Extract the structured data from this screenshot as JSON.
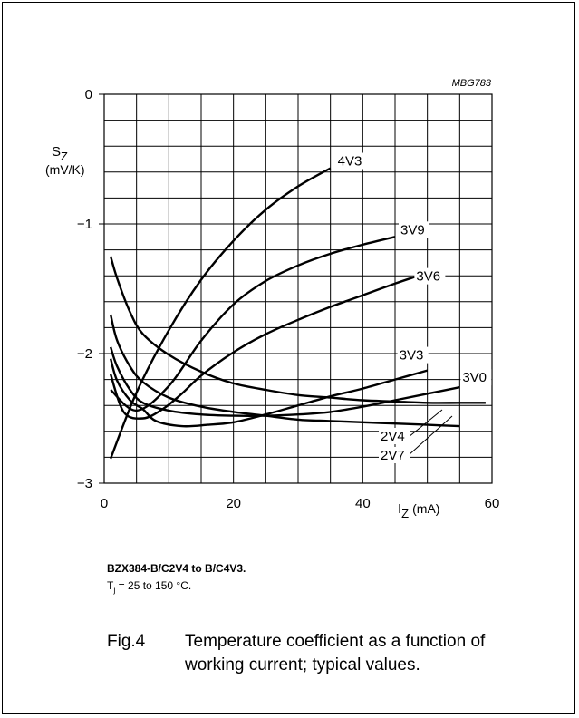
{
  "code": "MBG783",
  "caption": {
    "title": "BZX384-B/C2V4 to B/C4V3.",
    "condition_sym": "T",
    "condition_sub": "j",
    "condition_text": " = 25 to 150 °C."
  },
  "figure": {
    "number": "Fig.4",
    "text": "Temperature coefficient as a function of working current; typical values."
  },
  "chart_data": {
    "type": "line",
    "title": "",
    "xlabel": {
      "main": "I",
      "sub": "Z",
      "unit": "(mA)"
    },
    "ylabel": {
      "main": "S",
      "sub": "Z",
      "unit": "(mV/K)"
    },
    "xlim": [
      0,
      60
    ],
    "ylim": [
      -3,
      0
    ],
    "xticks": [
      0,
      20,
      40,
      60
    ],
    "xtick_labels": [
      "0",
      "20",
      "40",
      "60"
    ],
    "yticks": [
      0,
      -1,
      -2,
      -3
    ],
    "ytick_labels": [
      "0",
      "−1",
      "−2",
      "−3"
    ],
    "grid": true,
    "grid_x_step": 5,
    "grid_y_step": 0.2,
    "series": [
      {
        "name": "4V3",
        "x": [
          1,
          5,
          10,
          15,
          20,
          25,
          30,
          35
        ],
        "y": [
          -2.81,
          -2.3,
          -1.82,
          -1.43,
          -1.13,
          -0.89,
          -0.71,
          -0.57
        ]
      },
      {
        "name": "3V9",
        "x": [
          1,
          5,
          10,
          15,
          20,
          25,
          30,
          35,
          40,
          45
        ],
        "y": [
          -2.28,
          -2.44,
          -2.25,
          -1.9,
          -1.62,
          -1.44,
          -1.32,
          -1.23,
          -1.16,
          -1.1
        ]
      },
      {
        "name": "3V6",
        "x": [
          1,
          3,
          6,
          9,
          12,
          15,
          20,
          25,
          30,
          35,
          40,
          45,
          48
        ],
        "y": [
          -2.16,
          -2.45,
          -2.5,
          -2.43,
          -2.31,
          -2.17,
          -1.99,
          -1.85,
          -1.74,
          -1.64,
          -1.55,
          -1.46,
          -1.41
        ]
      },
      {
        "name": "3V3",
        "x": [
          1,
          2,
          4,
          6,
          8,
          12,
          16,
          20,
          25,
          30,
          35,
          40,
          45,
          50
        ],
        "y": [
          -2.04,
          -2.21,
          -2.36,
          -2.43,
          -2.52,
          -2.56,
          -2.55,
          -2.53,
          -2.47,
          -2.4,
          -2.33,
          -2.27,
          -2.2,
          -2.13
        ]
      },
      {
        "name": "3V0",
        "x": [
          1,
          2,
          4,
          6,
          10,
          15,
          20,
          25,
          30,
          35,
          40,
          45,
          50,
          55
        ],
        "y": [
          -1.95,
          -2.1,
          -2.28,
          -2.38,
          -2.44,
          -2.47,
          -2.48,
          -2.48,
          -2.47,
          -2.45,
          -2.41,
          -2.36,
          -2.31,
          -2.26
        ]
      },
      {
        "name": "2V4",
        "x": [
          1,
          2,
          4,
          6,
          10,
          15,
          20,
          25,
          30,
          35,
          40,
          45,
          50,
          55,
          59
        ],
        "y": [
          -1.25,
          -1.42,
          -1.68,
          -1.85,
          -2.01,
          -2.14,
          -2.23,
          -2.28,
          -2.32,
          -2.34,
          -2.36,
          -2.37,
          -2.38,
          -2.38,
          -2.38
        ]
      },
      {
        "name": "2V7",
        "x": [
          1,
          2,
          4,
          6,
          10,
          15,
          20,
          25,
          30,
          35,
          40,
          45,
          50,
          55
        ],
        "y": [
          -1.7,
          -1.9,
          -2.1,
          -2.22,
          -2.34,
          -2.41,
          -2.45,
          -2.48,
          -2.51,
          -2.52,
          -2.53,
          -2.54,
          -2.55,
          -2.56
        ]
      }
    ]
  }
}
